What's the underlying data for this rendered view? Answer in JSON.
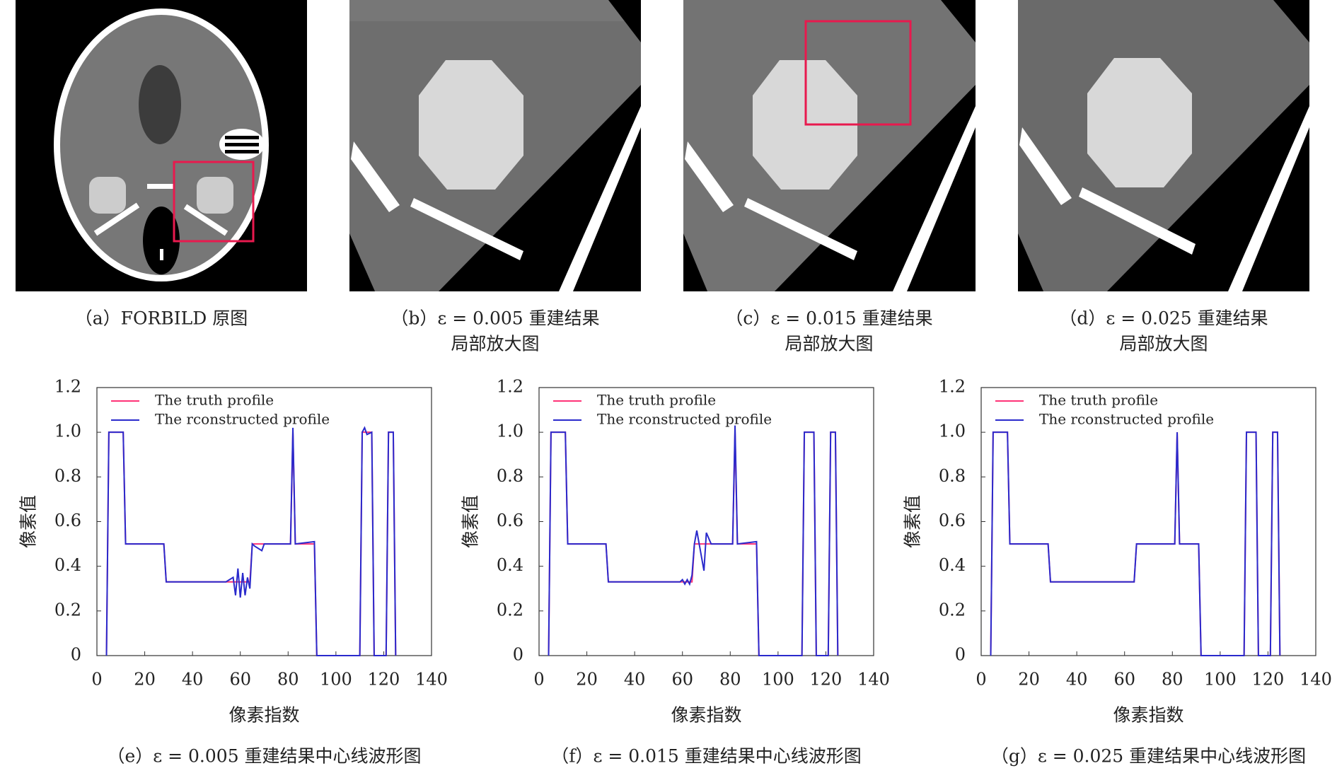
{
  "panels": [
    {
      "caption": [
        "（a）FORBILD 原图"
      ]
    },
    {
      "caption": [
        "（b）ε = 0.005 重建结果",
        "局部放大图"
      ]
    },
    {
      "caption": [
        "（c）ε = 0.015 重建结果",
        "局部放大图"
      ]
    },
    {
      "caption": [
        "（d）ε = 0.025 重建结果",
        "局部放大图"
      ]
    }
  ],
  "chart_data": [
    {
      "type": "line",
      "caption": "（e）ε = 0.005 重建结果中心线波形图",
      "xlabel": "像素指数",
      "ylabel": "像素值",
      "xlim": [
        0,
        140
      ],
      "ylim": [
        0,
        1.2
      ],
      "xticks": [
        0,
        20,
        40,
        60,
        80,
        100,
        120,
        140
      ],
      "yticks": [
        0,
        0.2,
        0.4,
        0.6,
        0.8,
        {
          "value": 1,
          "label": "1.0"
        },
        1.2
      ],
      "legend": "upper left",
      "x": [
        4,
        5,
        11,
        12,
        28,
        29,
        54,
        57,
        58,
        59,
        60,
        61,
        62,
        63,
        64,
        65,
        66,
        69,
        70,
        72,
        81,
        82,
        83,
        91,
        92,
        110,
        111,
        112,
        113,
        115,
        116,
        121,
        122,
        124,
        125
      ],
      "series": [
        {
          "name": "The truth profile",
          "color": "#ff3377",
          "values": [
            0,
            1,
            1,
            0.5,
            0.5,
            0.33,
            0.33,
            0.33,
            0.33,
            0.33,
            0.33,
            0.33,
            0.33,
            0.33,
            0.33,
            0.5,
            0.5,
            0.5,
            0.5,
            0.5,
            0.5,
            1,
            0.5,
            0.5,
            0,
            0,
            1,
            1,
            1,
            1,
            0,
            0,
            1,
            1,
            0
          ]
        },
        {
          "name": "The rconstructed profile",
          "color": "#2a2acc",
          "values": [
            0,
            1,
            1,
            0.5,
            0.5,
            0.33,
            0.33,
            0.35,
            0.27,
            0.39,
            0.26,
            0.37,
            0.27,
            0.35,
            0.3,
            0.5,
            0.49,
            0.47,
            0.5,
            0.5,
            0.5,
            1.02,
            0.5,
            0.51,
            0,
            0,
            1,
            1.02,
            0.99,
            1,
            0,
            0,
            1,
            1,
            0
          ]
        }
      ]
    },
    {
      "type": "line",
      "caption": "（f）ε = 0.015 重建结果中心线波形图",
      "xlabel": "像素指数",
      "ylabel": "像素值",
      "xlim": [
        0,
        140
      ],
      "ylim": [
        0,
        1.2
      ],
      "xticks": [
        0,
        20,
        40,
        60,
        80,
        100,
        120,
        140
      ],
      "yticks": [
        0,
        0.2,
        0.4,
        0.6,
        0.8,
        {
          "value": 1,
          "label": "1.0"
        },
        1.2
      ],
      "legend": "upper left",
      "x": [
        4,
        5,
        11,
        12,
        28,
        29,
        54,
        57,
        58,
        59,
        60,
        61,
        62,
        63,
        64,
        65,
        66,
        69,
        70,
        72,
        81,
        82,
        83,
        91,
        92,
        110,
        111,
        112,
        113,
        115,
        116,
        121,
        122,
        124,
        125
      ],
      "series": [
        {
          "name": "The truth profile",
          "color": "#ff3377",
          "values": [
            0,
            1,
            1,
            0.5,
            0.5,
            0.33,
            0.33,
            0.33,
            0.33,
            0.33,
            0.33,
            0.33,
            0.33,
            0.33,
            0.33,
            0.5,
            0.5,
            0.5,
            0.5,
            0.5,
            0.5,
            1,
            0.5,
            0.5,
            0,
            0,
            1,
            1,
            1,
            1,
            0,
            0,
            1,
            1,
            0
          ]
        },
        {
          "name": "The rconstructed profile",
          "color": "#2a2acc",
          "values": [
            0,
            1,
            1,
            0.5,
            0.5,
            0.33,
            0.33,
            0.33,
            0.33,
            0.33,
            0.34,
            0.32,
            0.34,
            0.32,
            0.36,
            0.5,
            0.56,
            0.38,
            0.55,
            0.5,
            0.5,
            1.03,
            0.5,
            0.51,
            0,
            0,
            1,
            1,
            1,
            1,
            0,
            0,
            1,
            1,
            0
          ]
        }
      ]
    },
    {
      "type": "line",
      "caption": "（g）ε = 0.025 重建结果中心线波形图",
      "xlabel": "像素指数",
      "ylabel": "像素值",
      "xlim": [
        0,
        140
      ],
      "ylim": [
        0,
        1.2
      ],
      "xticks": [
        0,
        20,
        40,
        60,
        80,
        100,
        120,
        140
      ],
      "yticks": [
        0,
        0.2,
        0.4,
        0.6,
        0.8,
        {
          "value": 1,
          "label": "1.0"
        },
        1.2
      ],
      "legend": "upper left",
      "x": [
        4,
        5,
        11,
        12,
        28,
        29,
        54,
        57,
        58,
        59,
        60,
        61,
        62,
        63,
        64,
        65,
        66,
        69,
        70,
        72,
        81,
        82,
        83,
        91,
        92,
        110,
        111,
        112,
        113,
        115,
        116,
        121,
        122,
        124,
        125
      ],
      "series": [
        {
          "name": "The truth profile",
          "color": "#ff3377",
          "values": [
            0,
            1,
            1,
            0.5,
            0.5,
            0.33,
            0.33,
            0.33,
            0.33,
            0.33,
            0.33,
            0.33,
            0.33,
            0.33,
            0.33,
            0.5,
            0.5,
            0.5,
            0.5,
            0.5,
            0.5,
            1,
            0.5,
            0.5,
            0,
            0,
            1,
            1,
            1,
            1,
            0,
            0,
            1,
            1,
            0
          ]
        },
        {
          "name": "The rconstructed profile",
          "color": "#2a2acc",
          "values": [
            0,
            1,
            1,
            0.5,
            0.5,
            0.33,
            0.33,
            0.33,
            0.33,
            0.33,
            0.33,
            0.33,
            0.33,
            0.33,
            0.33,
            0.5,
            0.5,
            0.5,
            0.5,
            0.5,
            0.5,
            1,
            0.5,
            0.5,
            0,
            0,
            1,
            1,
            1,
            1,
            0,
            0,
            1,
            1,
            0
          ]
        }
      ]
    }
  ]
}
